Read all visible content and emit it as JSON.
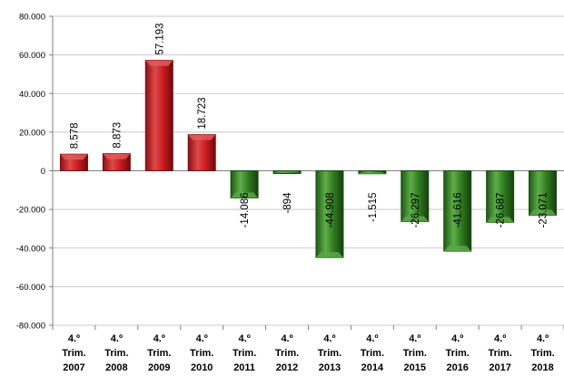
{
  "chart_data": {
    "type": "bar",
    "title": "",
    "xlabel": "",
    "ylabel": "",
    "categories": [
      [
        "4.º",
        "Trim.",
        "2007"
      ],
      [
        "4.º",
        "Trim.",
        "2008"
      ],
      [
        "4.º",
        "Trim.",
        "2009"
      ],
      [
        "4.º",
        "Trim.",
        "2010"
      ],
      [
        "4.º",
        "Trim.",
        "2011"
      ],
      [
        "4.º",
        "Trim.",
        "2012"
      ],
      [
        "4.º",
        "Trim.",
        "2013"
      ],
      [
        "4.º",
        "Trim.",
        "2014"
      ],
      [
        "4.º",
        "Trim.",
        "2015"
      ],
      [
        "4.º",
        "Trim.",
        "2016"
      ],
      [
        "4.º",
        "Trim.",
        "2017"
      ],
      [
        "4.º",
        "Trim.",
        "2018"
      ]
    ],
    "values": [
      8578,
      8873,
      57193,
      18723,
      -14086,
      -894,
      -44908,
      -1515,
      -26297,
      -41616,
      -26687,
      -23071
    ],
    "data_labels": [
      "8.578",
      "8.873",
      "57.193",
      "18.723",
      "-14.086",
      "-894",
      "-44.908",
      "-1.515",
      "-26.297",
      "-41.616",
      "-26.687",
      "-23.071"
    ],
    "ylim": [
      -80000,
      80000
    ],
    "yticks": [
      80000,
      60000,
      40000,
      20000,
      0,
      -20000,
      -40000,
      -60000,
      -80000
    ],
    "ytick_labels": [
      "80.000",
      "60.000",
      "40.000",
      "20.000",
      "0",
      "-20.000",
      "-40.000",
      "-60.000",
      "-80.000"
    ],
    "grid": true,
    "legend": "none",
    "colors": {
      "positive": "#c0161c",
      "positive_light": "#e35a5a",
      "positive_dark": "#7a0c10",
      "negative": "#2f7a1f",
      "negative_light": "#5aa846",
      "negative_dark": "#184a10"
    }
  }
}
